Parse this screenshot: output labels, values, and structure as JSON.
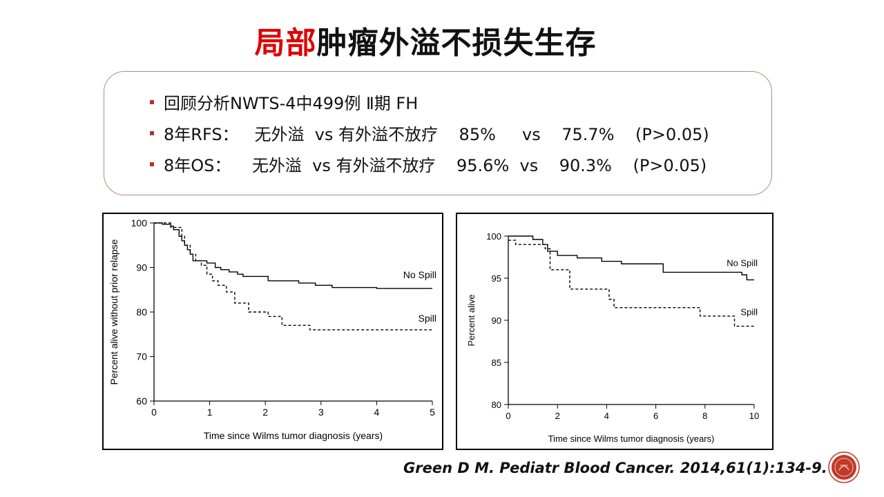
{
  "title": {
    "highlight": "局部",
    "rest": "肿瘤外溢不损失生存"
  },
  "bullets": [
    "回顾分析NWTS-4中499例 Ⅱ期 FH",
    "8年RFS：   无外溢  vs 有外溢不放疗    85%     vs    75.7%    (P>0.05)",
    "8年OS：    无外溢  vs 有外溢不放疗    95.6%  vs    90.3%    (P>0.05)"
  ],
  "citation": "Green D M. Pediatr Blood Cancer. 2014,61(1):134-9.",
  "colors": {
    "accent": "#e00000",
    "bullet": "#a5372f",
    "border": "#b58a8a",
    "logo": "#c0392b"
  },
  "logo_icon": "circular-emblem-icon",
  "chart_data": [
    {
      "type": "line",
      "step": true,
      "xlabel": "Time since Wilms tumor diagnosis (years)",
      "ylabel": "Percent alive without prior relapse",
      "xlim": [
        0,
        5
      ],
      "ylim": [
        60,
        100
      ],
      "xticks": [
        0,
        1,
        2,
        3,
        4,
        5
      ],
      "yticks": [
        60,
        70,
        80,
        90,
        100
      ],
      "series": [
        {
          "name": "No Spill",
          "style": "solid",
          "x": [
            0,
            0.15,
            0.3,
            0.35,
            0.45,
            0.5,
            0.55,
            0.6,
            0.65,
            0.7,
            0.8,
            0.95,
            1.1,
            1.2,
            1.35,
            1.5,
            1.6,
            2.05,
            2.6,
            2.9,
            3.2,
            4.0,
            5.0
          ],
          "y": [
            100,
            99.7,
            99.3,
            98.5,
            97,
            96,
            95,
            94,
            93,
            91.5,
            91.5,
            91,
            90,
            89.5,
            89,
            88.5,
            88,
            87,
            86.5,
            86,
            85.5,
            85.3,
            85.3
          ]
        },
        {
          "name": "Spill",
          "style": "dashed",
          "x": [
            0,
            0.3,
            0.5,
            0.55,
            0.65,
            0.75,
            0.85,
            0.95,
            1.05,
            1.15,
            1.3,
            1.45,
            1.7,
            2.05,
            2.3,
            2.8,
            3.5,
            5.0
          ],
          "y": [
            100,
            99,
            97,
            95,
            93,
            91.5,
            90.5,
            88.5,
            87,
            86,
            84.5,
            82,
            80,
            79,
            77,
            76,
            76,
            76
          ]
        }
      ]
    },
    {
      "type": "line",
      "step": true,
      "xlabel": "Time since Wilms tumor diagnosis (years)",
      "ylabel": "Percent alive",
      "xlim": [
        0,
        10
      ],
      "ylim": [
        80,
        100
      ],
      "xticks": [
        0,
        2,
        4,
        6,
        8,
        10
      ],
      "yticks": [
        80,
        85,
        90,
        95,
        100
      ],
      "series": [
        {
          "name": "No Spill",
          "style": "solid",
          "x": [
            0,
            1.0,
            1.4,
            1.6,
            2.0,
            2.8,
            3.8,
            4.6,
            6.3,
            9.5,
            9.7,
            10.0
          ],
          "y": [
            100,
            99.6,
            99,
            98.2,
            97.7,
            97.4,
            97,
            96.7,
            95.7,
            95.4,
            94.8,
            94.8
          ]
        },
        {
          "name": "Spill",
          "style": "dashed",
          "x": [
            0,
            0.3,
            1.5,
            1.7,
            2.5,
            4.1,
            4.3,
            7.8,
            9.2,
            10.0
          ],
          "y": [
            99.5,
            99,
            98.5,
            96,
            93.7,
            92.5,
            91.5,
            90.5,
            89.3,
            89.3
          ]
        }
      ]
    }
  ]
}
